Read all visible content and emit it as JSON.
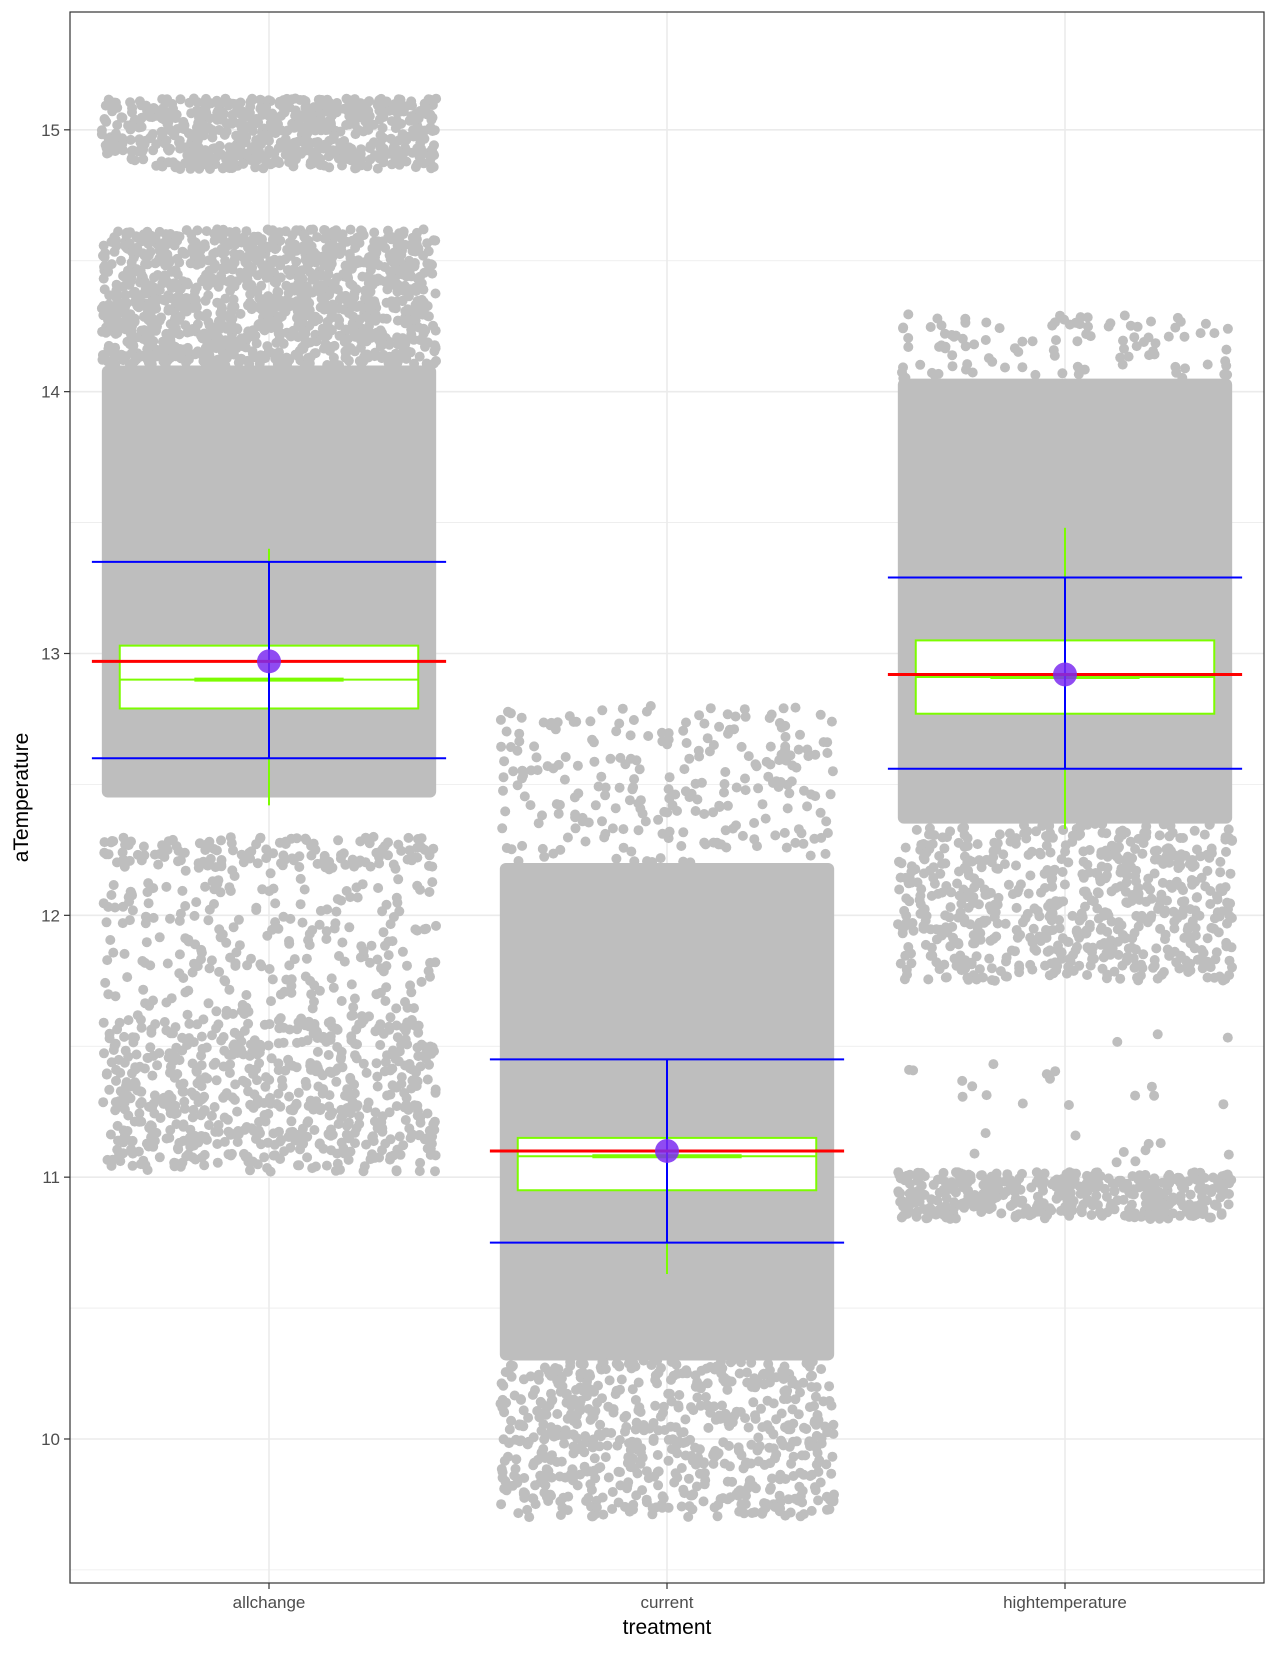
{
  "chart_data": {
    "type": "scatter",
    "subtype": "jittered points with boxplot, mean and error bars",
    "title": "",
    "xlabel": "treatment",
    "ylabel": "aTemperature",
    "categories": [
      "allchange",
      "current",
      "hightemperature"
    ],
    "ylim": [
      9.45,
      15.45
    ],
    "yticks": [
      10,
      11,
      12,
      13,
      14,
      15
    ],
    "yticks_labels": [
      "10",
      "11",
      "12",
      "13",
      "14",
      "15"
    ],
    "grid": true,
    "legend": "none",
    "colors": {
      "points": "#bebebe",
      "box": "#7cfc00",
      "box_fill": "#ffffff",
      "error_bar": "#0000ff",
      "mean_line": "#ff0000",
      "mean_point": "#7b2cf0",
      "grid": "#ebebeb",
      "panel_border": "#333333"
    },
    "point_bands": {
      "allchange": [
        {
          "ymin": 14.85,
          "ymax": 15.12,
          "density": "high"
        },
        {
          "ymin": 14.1,
          "ymax": 14.62,
          "density": "high"
        },
        {
          "ymin": 12.45,
          "ymax": 14.1,
          "density": "solid"
        },
        {
          "ymin": 12.18,
          "ymax": 12.3,
          "density": "medium"
        },
        {
          "ymin": 11.6,
          "ymax": 12.18,
          "density": "low"
        },
        {
          "ymin": 11.02,
          "ymax": 11.6,
          "density": "medium"
        }
      ],
      "current": [
        {
          "ymin": 12.2,
          "ymax": 12.8,
          "density": "low"
        },
        {
          "ymin": 10.3,
          "ymax": 12.2,
          "density": "solid"
        },
        {
          "ymin": 9.7,
          "ymax": 10.3,
          "density": "medium"
        }
      ],
      "hightemperature": [
        {
          "ymin": 14.05,
          "ymax": 14.3,
          "density": "low"
        },
        {
          "ymin": 12.35,
          "ymax": 14.05,
          "density": "solid"
        },
        {
          "ymin": 11.75,
          "ymax": 12.35,
          "density": "medium"
        },
        {
          "ymin": 11.05,
          "ymax": 11.55,
          "density": "sparse"
        },
        {
          "ymin": 10.84,
          "ymax": 11.02,
          "density": "high"
        }
      ]
    },
    "series": [
      {
        "category": "allchange",
        "box_q1": 12.79,
        "box_median": 12.9,
        "box_q3": 13.03,
        "whisker_low": 12.42,
        "whisker_high": 13.4,
        "mean": 12.97,
        "error_low": 12.6,
        "error_high": 13.35
      },
      {
        "category": "current",
        "box_q1": 10.95,
        "box_median": 11.08,
        "box_q3": 11.15,
        "whisker_low": 10.63,
        "whisker_high": 11.45,
        "mean": 11.1,
        "error_low": 10.75,
        "error_high": 11.45
      },
      {
        "category": "hightemperature",
        "box_q1": 12.77,
        "box_median": 12.91,
        "box_q3": 13.05,
        "whisker_low": 12.33,
        "whisker_high": 13.48,
        "mean": 12.92,
        "error_low": 12.56,
        "error_high": 13.29
      }
    ]
  }
}
